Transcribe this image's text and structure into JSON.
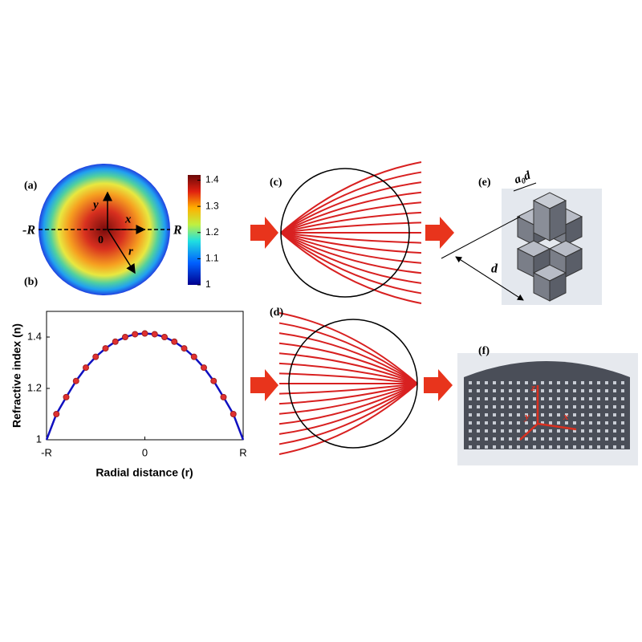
{
  "chart_data": [
    {
      "type": "line",
      "ylabel": "Refractive index (n)",
      "xlabel": "Radial distance (r)",
      "xlim": [
        -1,
        1
      ],
      "ylim": [
        1,
        1.5
      ],
      "xticks": [
        {
          "value": -1,
          "label": "-R"
        },
        0,
        {
          "value": 1,
          "label": "R"
        }
      ],
      "yticks": [
        1,
        1.2,
        1.4
      ],
      "x": [
        -1,
        -0.9,
        -0.8,
        -0.7,
        -0.6,
        -0.5,
        -0.4,
        -0.3,
        -0.2,
        -0.1,
        0,
        0.1,
        0.2,
        0.3,
        0.4,
        0.5,
        0.6,
        0.7,
        0.8,
        0.9,
        1
      ],
      "series": [
        {
          "style": "line",
          "color": "#1010c0",
          "values": [
            1,
            1.1,
            1.166,
            1.229,
            1.281,
            1.323,
            1.356,
            1.382,
            1.4,
            1.411,
            1.414,
            1.411,
            1.4,
            1.382,
            1.356,
            1.323,
            1.281,
            1.229,
            1.166,
            1.1,
            1
          ]
        },
        {
          "style": "markers",
          "color": "#e03030",
          "values": [
            null,
            1.1,
            1.166,
            1.229,
            1.281,
            1.323,
            1.356,
            1.382,
            1.4,
            1.411,
            1.414,
            1.411,
            1.4,
            1.382,
            1.356,
            1.323,
            1.281,
            1.229,
            1.166,
            1.1,
            null
          ]
        }
      ]
    },
    {
      "type": "colorbar",
      "clim": [
        1,
        1.42
      ],
      "cticks": [
        1,
        1.1,
        1.2,
        1.3,
        1.4
      ]
    }
  ],
  "panels": {
    "a": "(a)",
    "b": "(b)",
    "c": "(c)",
    "d": "(d)",
    "e": "(e)",
    "f": "(f)"
  },
  "panel_a": {
    "neg_r": "-R",
    "pos_r": "R",
    "origin": "0",
    "x": "x",
    "y": "y",
    "r": "r"
  },
  "panel_e": {
    "a": "a",
    "sub": "0",
    "d_tail": "d",
    "d": "d"
  },
  "panel_f": {
    "z": "z",
    "y": "y",
    "x": "x"
  }
}
